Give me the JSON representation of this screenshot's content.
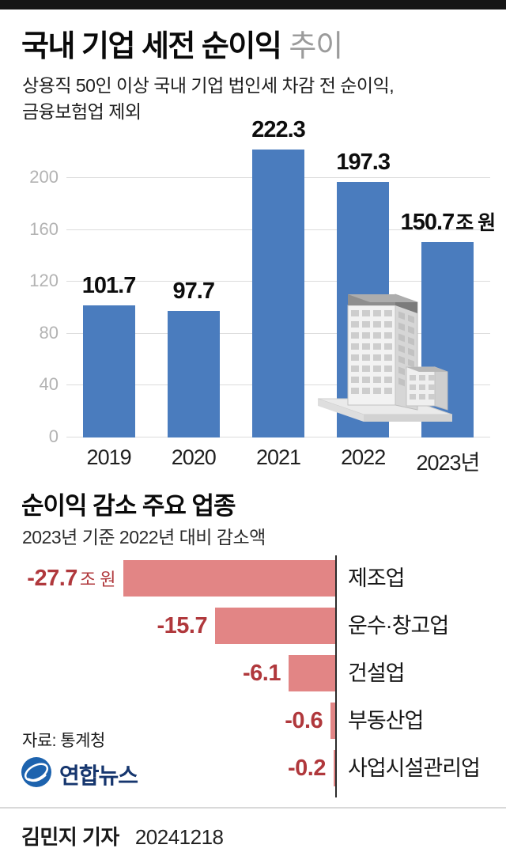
{
  "colors": {
    "bar_blue": "#4a7cbe",
    "bar_red": "#e28585",
    "red_text": "#b0383c",
    "topbar": "#161616"
  },
  "header": {
    "title_main": "국내 기업 세전 순이익",
    "title_light": "추이",
    "subtitle_line1": "상용직 50인 이상 국내 기업 법인세 차감 전 순이익,",
    "subtitle_line2": "금융보험업 제외"
  },
  "chart_data": [
    {
      "type": "bar",
      "title": "국내 기업 세전 순이익 추이",
      "categories": [
        "2019",
        "2020",
        "2021",
        "2022",
        "2023년"
      ],
      "values": [
        101.7,
        97.7,
        222.3,
        197.3,
        150.7
      ],
      "value_labels": [
        "101.7",
        "97.7",
        "222.3",
        "197.3",
        "150.7"
      ],
      "unit": "조 원",
      "xlabel": "",
      "ylabel": "",
      "ylim": [
        0,
        230
      ],
      "yticks": [
        0,
        40,
        80,
        120,
        160,
        200
      ],
      "grid": "horizontal",
      "legend": "none",
      "bar_color": "#4a7cbe"
    },
    {
      "type": "bar",
      "orientation": "horizontal",
      "title": "순이익 감소 주요 업종",
      "subtitle": "2023년 기준 2022년 대비 감소액",
      "categories": [
        "제조업",
        "운수·창고업",
        "건설업",
        "부동산업",
        "사업시설관리업"
      ],
      "values": [
        -27.7,
        -15.7,
        -6.1,
        -0.6,
        -0.2
      ],
      "value_labels": [
        "-27.7",
        "-15.7",
        "-6.1",
        "-0.6",
        "-0.2"
      ],
      "unit": "조 원",
      "grid": "off",
      "legend": "none",
      "bar_color": "#e28585"
    }
  ],
  "footer": {
    "source": "자료: 통계청",
    "logo_text": "연합뉴스",
    "reporter": "김민지 기자",
    "date": "20241218"
  }
}
